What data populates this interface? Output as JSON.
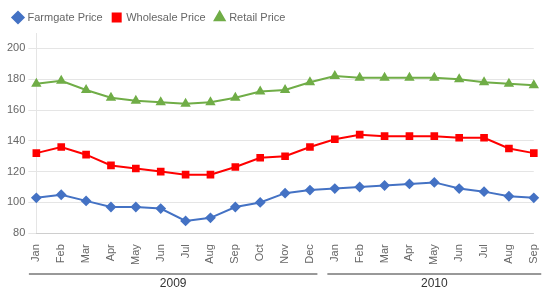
{
  "chart_data": {
    "type": "line",
    "categories": [
      "Jan",
      "Feb",
      "Mar",
      "Apr",
      "May",
      "Jun",
      "Jul",
      "Aug",
      "Sep",
      "Oct",
      "Nov",
      "Dec",
      "Jan",
      "Feb",
      "Mar",
      "Apr",
      "May",
      "Jun",
      "Jul",
      "Aug",
      "Sep"
    ],
    "series": [
      {
        "name": "Farmgate Price",
        "color": "#4472C4",
        "marker": "diamond",
        "values": [
          103,
          105,
          101,
          97,
          97,
          96,
          88,
          90,
          97,
          100,
          106,
          108,
          109,
          110,
          111,
          112,
          113,
          109,
          107,
          104,
          103
        ]
      },
      {
        "name": "Wholesale Price",
        "color": "#FF0000",
        "marker": "square",
        "values": [
          132,
          136,
          131,
          124,
          122,
          120,
          118,
          118,
          123,
          129,
          130,
          136,
          141,
          144,
          143,
          143,
          143,
          142,
          142,
          135,
          132
        ]
      },
      {
        "name": "Retail Price",
        "color": "#70AD47",
        "marker": "triangle",
        "values": [
          177,
          179,
          173,
          168,
          166,
          165,
          164,
          165,
          168,
          172,
          173,
          178,
          182,
          181,
          181,
          181,
          181,
          180,
          178,
          177,
          176
        ]
      }
    ],
    "ylim": [
      80,
      210
    ],
    "yticks": [
      80,
      100,
      120,
      140,
      160,
      180,
      200
    ],
    "grid": "y",
    "legend": "upper left",
    "annotations": [
      {
        "text": "2009",
        "x": [
          0,
          11
        ]
      },
      {
        "text": "2010",
        "x": [
          12,
          20
        ]
      }
    ]
  }
}
